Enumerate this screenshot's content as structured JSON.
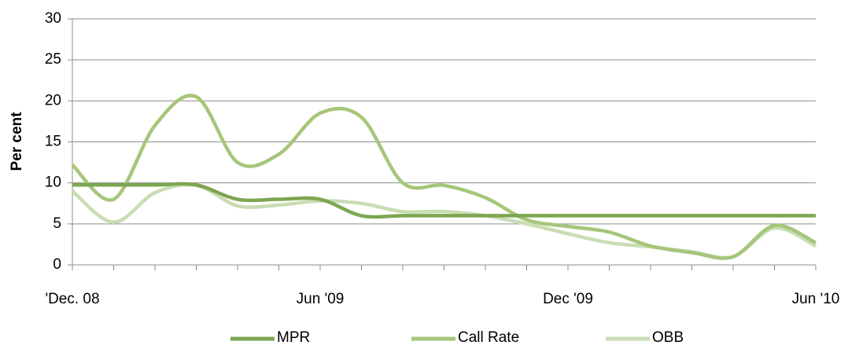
{
  "chart_data": {
    "type": "line",
    "y_label": "Per cent",
    "categories": [
      "'Dec. 08",
      null,
      null,
      null,
      null,
      null,
      "Jun '09",
      null,
      null,
      null,
      null,
      null,
      "Dec  '09",
      null,
      null,
      null,
      null,
      null,
      "Jun '10"
    ],
    "series": [
      {
        "name": "MPR",
        "color": "#7ea651",
        "values": [
          9.75,
          9.75,
          9.75,
          9.75,
          8,
          8,
          8,
          6,
          6,
          6,
          6,
          6,
          6,
          6,
          6,
          6,
          6,
          6,
          6
        ]
      },
      {
        "name": "Call Rate",
        "color": "#a6c67a",
        "values": [
          12.2,
          8,
          17,
          20.5,
          12.5,
          13.5,
          18.5,
          18,
          10,
          9.7,
          8.2,
          5.5,
          4.7,
          4,
          2.3,
          1.5,
          1,
          4.8,
          2.7
        ]
      },
      {
        "name": "OBB",
        "color": "#c9ddb4",
        "values": [
          9,
          5.2,
          8.8,
          9.7,
          7.2,
          7.3,
          7.8,
          7.5,
          6.5,
          6.5,
          6,
          5,
          3.8,
          2.7,
          2.2,
          1.6,
          1,
          4.5,
          2.3
        ]
      }
    ],
    "ylim": [
      0,
      30
    ],
    "yticks": [
      0,
      5,
      10,
      15,
      20,
      25,
      30
    ],
    "grid": true,
    "legend": "bottom"
  }
}
